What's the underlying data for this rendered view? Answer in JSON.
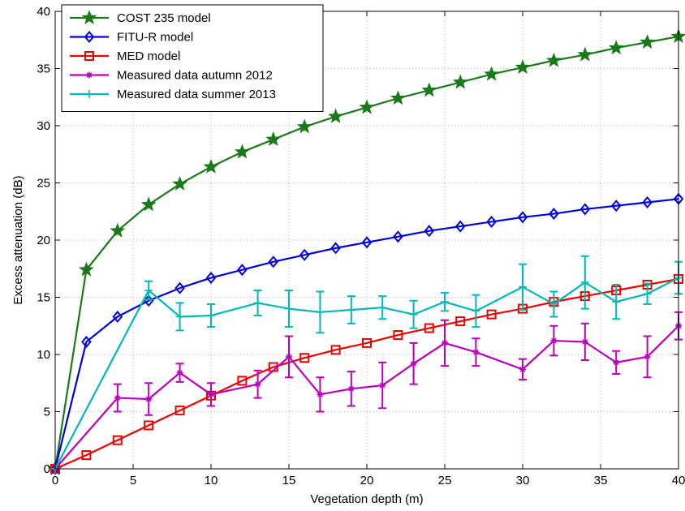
{
  "chart_data": {
    "type": "line",
    "title": "",
    "xlabel": "Vegetation depth (m)",
    "ylabel": "Excess attenuation (dB)",
    "xlim": [
      0,
      40
    ],
    "ylim": [
      0,
      40
    ],
    "xticks": [
      0,
      5,
      10,
      15,
      20,
      25,
      30,
      35,
      40
    ],
    "yticks": [
      0,
      5,
      10,
      15,
      20,
      25,
      30,
      35,
      40
    ],
    "grid": "on (dotted)",
    "legend_position": "top-left",
    "series": [
      {
        "name": "COST 235 model",
        "color": "#1a7a1a",
        "marker": "star",
        "x": [
          0,
          2,
          4,
          6,
          8,
          10,
          12,
          14,
          16,
          18,
          20,
          22,
          24,
          26,
          28,
          30,
          32,
          34,
          36,
          38,
          40
        ],
        "y": [
          0,
          17.4,
          20.8,
          23.1,
          24.9,
          26.4,
          27.7,
          28.8,
          29.9,
          30.8,
          31.6,
          32.4,
          33.1,
          33.8,
          34.5,
          35.1,
          35.7,
          36.2,
          36.8,
          37.3,
          37.8
        ]
      },
      {
        "name": "FITU-R model",
        "color": "#0000dd",
        "marker": "diamond",
        "x": [
          0,
          2,
          4,
          6,
          8,
          10,
          12,
          14,
          16,
          18,
          20,
          22,
          24,
          26,
          28,
          30,
          32,
          34,
          36,
          38,
          40
        ],
        "y": [
          0,
          11.1,
          13.3,
          14.7,
          15.8,
          16.7,
          17.4,
          18.1,
          18.7,
          19.3,
          19.8,
          20.3,
          20.8,
          21.2,
          21.6,
          22.0,
          22.3,
          22.7,
          23.0,
          23.3,
          23.6
        ]
      },
      {
        "name": "MED model",
        "color": "#ee0000",
        "marker": "square",
        "x": [
          0,
          2,
          4,
          6,
          8,
          10,
          12,
          14,
          16,
          18,
          20,
          22,
          24,
          26,
          28,
          30,
          32,
          34,
          36,
          38,
          40
        ],
        "y": [
          0,
          1.2,
          2.5,
          3.8,
          5.1,
          6.4,
          7.7,
          8.9,
          9.7,
          10.4,
          11.0,
          11.7,
          12.3,
          12.9,
          13.5,
          14.0,
          14.6,
          15.1,
          15.6,
          16.1,
          16.6
        ]
      },
      {
        "name": "Measured data autumn 2012",
        "color": "#bb00bb",
        "marker": "asterisk",
        "x": [
          0,
          4,
          6,
          8,
          10,
          13,
          15,
          17,
          19,
          21,
          23,
          25,
          27,
          30,
          32,
          34,
          36,
          38,
          40
        ],
        "y": [
          0,
          6.2,
          6.1,
          8.4,
          6.5,
          7.4,
          9.8,
          6.5,
          7.0,
          7.3,
          9.2,
          11.0,
          10.2,
          8.7,
          11.2,
          11.1,
          9.3,
          9.8,
          12.5
        ],
        "err": [
          0,
          1.2,
          1.4,
          0.8,
          1.0,
          1.2,
          1.8,
          1.5,
          1.5,
          2.0,
          1.8,
          2.0,
          1.2,
          0.9,
          1.3,
          1.6,
          1.0,
          1.8,
          1.2
        ]
      },
      {
        "name": "Measured data summer 2013",
        "color": "#00b8b8",
        "marker": "plus",
        "x": [
          0,
          6,
          8,
          10,
          13,
          15,
          17,
          19,
          21,
          23,
          25,
          27,
          30,
          32,
          34,
          36,
          38,
          40
        ],
        "y": [
          0,
          15.6,
          13.3,
          13.4,
          14.5,
          14.0,
          13.7,
          13.9,
          14.1,
          13.5,
          14.6,
          13.8,
          15.9,
          14.4,
          16.3,
          14.6,
          15.3,
          16.7
        ],
        "err": [
          0,
          0.8,
          1.2,
          1.0,
          1.1,
          1.6,
          1.8,
          1.2,
          1.0,
          1.2,
          0.8,
          1.4,
          2.0,
          1.1,
          2.3,
          1.5,
          0.9,
          1.4
        ]
      }
    ]
  }
}
